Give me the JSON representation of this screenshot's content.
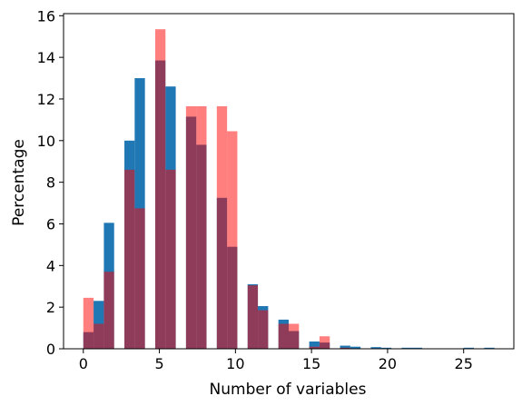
{
  "chart_data": {
    "type": "bar",
    "title": "",
    "xlabel": "Number of variables",
    "ylabel": "Percentage",
    "xlim": [
      -1.3,
      28.3
    ],
    "ylim": [
      0,
      16.1
    ],
    "xticks": [
      0,
      5,
      10,
      15,
      20,
      25
    ],
    "yticks": [
      0,
      2,
      4,
      6,
      8,
      10,
      12,
      14,
      16
    ],
    "grid": false,
    "legend": "none",
    "bin_width": 0.675,
    "series": [
      {
        "color": "#1f77b4",
        "alpha": 1.0,
        "bars": [
          {
            "x": 0.0,
            "value": 0.8
          },
          {
            "x": 0.675,
            "value": 2.3
          },
          {
            "x": 1.35,
            "value": 6.05
          },
          {
            "x": 2.7,
            "value": 10.0
          },
          {
            "x": 3.375,
            "value": 13.0
          },
          {
            "x": 4.725,
            "value": 13.85
          },
          {
            "x": 5.4,
            "value": 12.6
          },
          {
            "x": 6.75,
            "value": 11.15
          },
          {
            "x": 7.425,
            "value": 9.8
          },
          {
            "x": 8.775,
            "value": 7.25
          },
          {
            "x": 9.45,
            "value": 4.9
          },
          {
            "x": 10.8,
            "value": 3.1
          },
          {
            "x": 11.475,
            "value": 2.05
          },
          {
            "x": 12.825,
            "value": 1.4
          },
          {
            "x": 13.5,
            "value": 0.85
          },
          {
            "x": 14.85,
            "value": 0.35
          },
          {
            "x": 15.525,
            "value": 0.3
          },
          {
            "x": 16.875,
            "value": 0.15
          },
          {
            "x": 17.55,
            "value": 0.1
          },
          {
            "x": 18.9,
            "value": 0.08
          },
          {
            "x": 19.575,
            "value": 0.05
          },
          {
            "x": 20.925,
            "value": 0.05
          },
          {
            "x": 21.6,
            "value": 0.05
          },
          {
            "x": 25.0,
            "value": 0.05
          },
          {
            "x": 26.35,
            "value": 0.05
          }
        ]
      },
      {
        "color": "#ff0000",
        "alpha": 0.5,
        "bars": [
          {
            "x": 0.0,
            "value": 2.45
          },
          {
            "x": 0.675,
            "value": 1.2
          },
          {
            "x": 1.35,
            "value": 3.7
          },
          {
            "x": 2.7,
            "value": 8.6
          },
          {
            "x": 3.375,
            "value": 6.75
          },
          {
            "x": 4.725,
            "value": 15.35
          },
          {
            "x": 5.4,
            "value": 8.6
          },
          {
            "x": 6.75,
            "value": 11.65
          },
          {
            "x": 7.425,
            "value": 11.65
          },
          {
            "x": 8.775,
            "value": 11.65
          },
          {
            "x": 9.45,
            "value": 10.45
          },
          {
            "x": 10.8,
            "value": 3.05
          },
          {
            "x": 11.475,
            "value": 1.85
          },
          {
            "x": 12.825,
            "value": 1.2
          },
          {
            "x": 13.5,
            "value": 1.2
          },
          {
            "x": 14.85,
            "value": 0.1
          },
          {
            "x": 15.525,
            "value": 0.6
          },
          {
            "x": 16.875,
            "value": 0.05
          }
        ]
      }
    ]
  }
}
